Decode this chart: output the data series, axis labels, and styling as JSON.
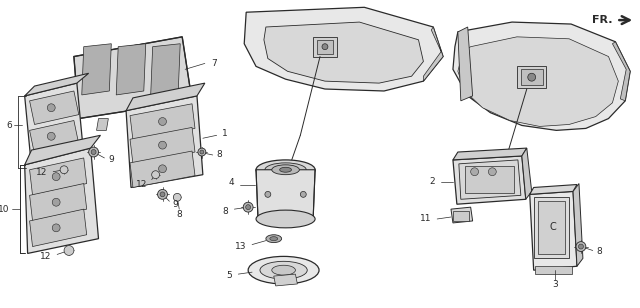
{
  "bg_color": "#ffffff",
  "line_color": "#2a2a2a",
  "fig_width": 6.4,
  "fig_height": 3.08,
  "dpi": 100,
  "label_fs": 6.5,
  "lw": 0.7
}
